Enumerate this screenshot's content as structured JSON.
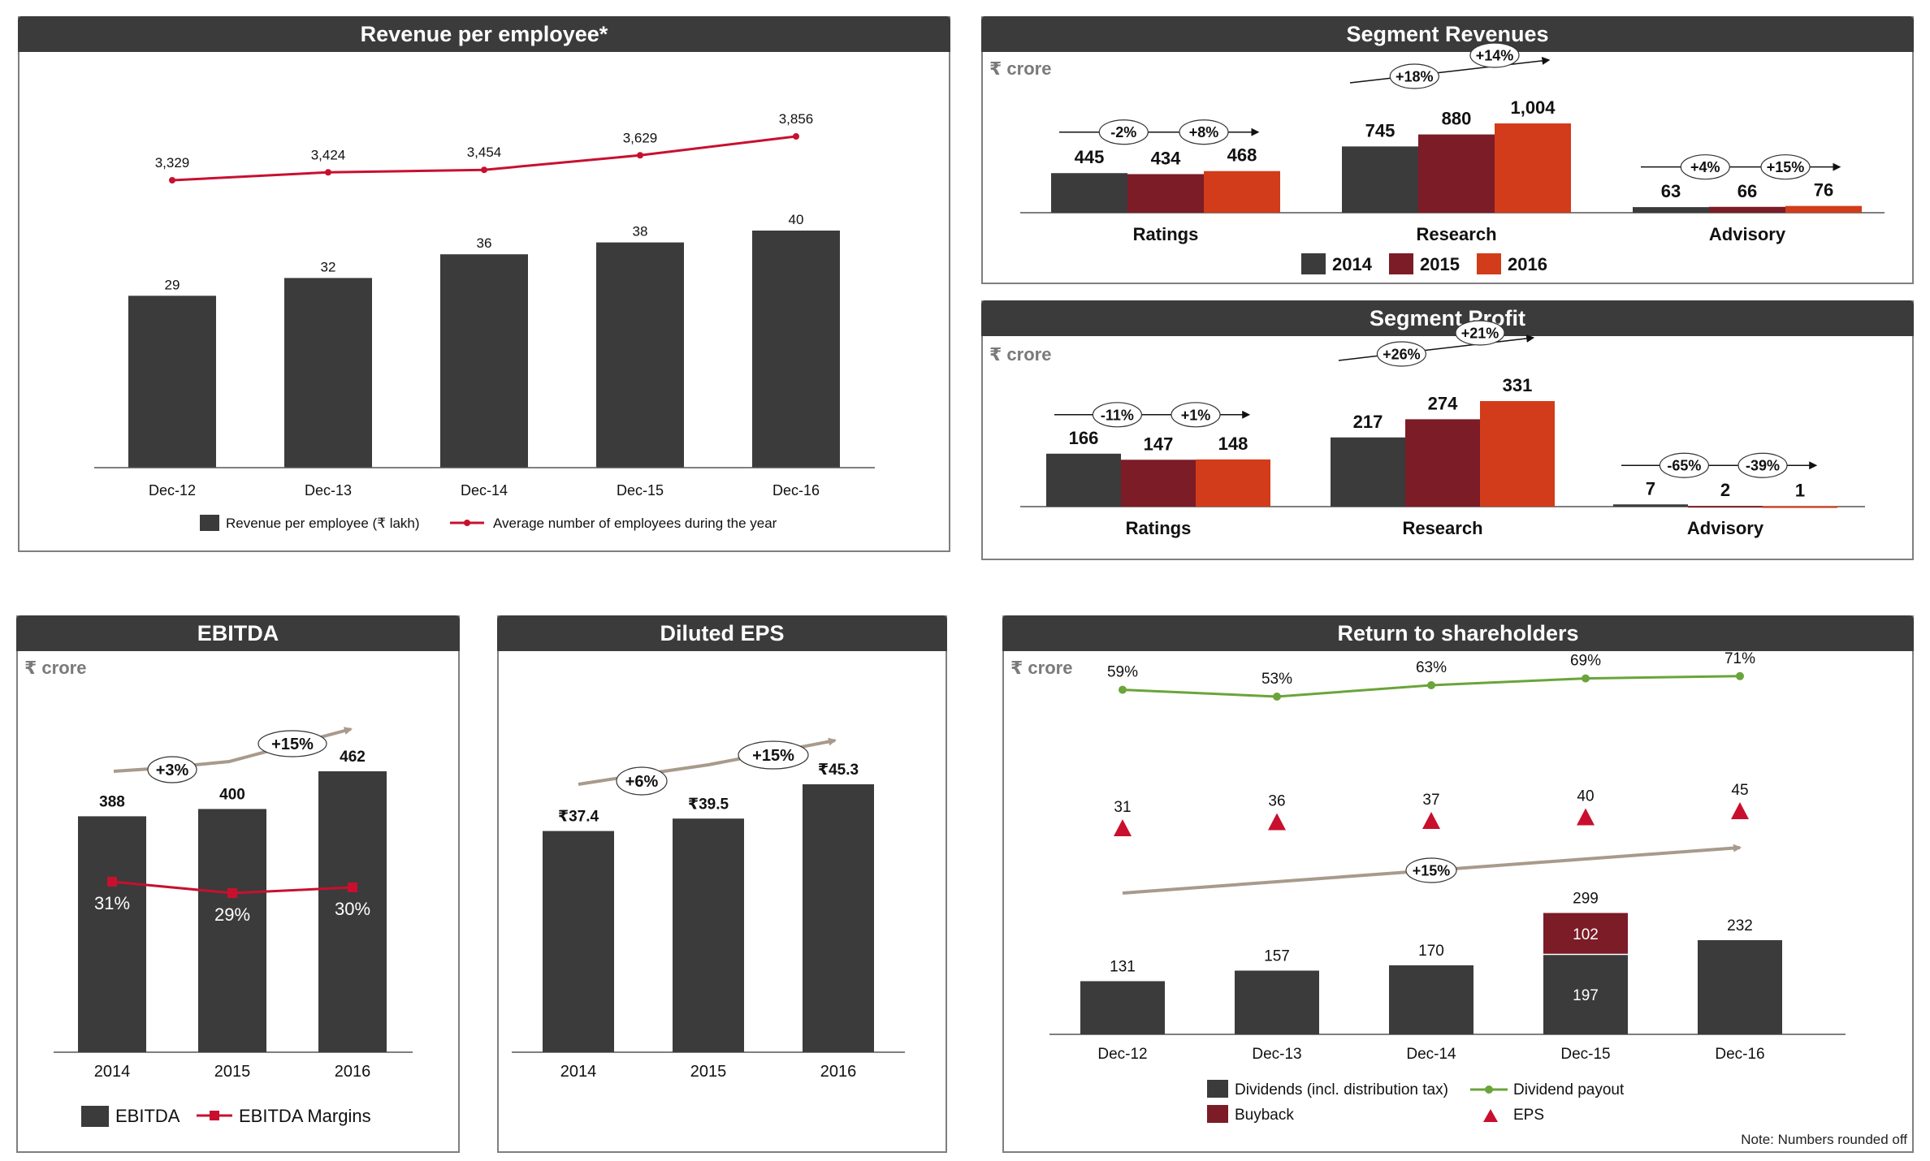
{
  "colors": {
    "dark": "#3b3b3b",
    "maroon": "#7b1c27",
    "orange": "#d23c1a",
    "red": "#c8102e",
    "green": "#6aa43a",
    "tan": "#a89a8c"
  },
  "panels": {
    "rev_emp": {
      "title": "Revenue per employee*"
    },
    "seg_rev": {
      "title": "Segment Revenues",
      "unit": "₹ crore"
    },
    "seg_profit": {
      "title": "Segment Profit",
      "unit": "₹ crore"
    },
    "ebitda": {
      "title": "EBITDA",
      "unit": "₹ crore"
    },
    "eps": {
      "title": "Diluted EPS"
    },
    "return": {
      "title": "Return to shareholders",
      "unit": "₹ crore",
      "note": "Note: Numbers rounded off"
    }
  },
  "chart_data": [
    {
      "id": "rev_emp",
      "type": "bar",
      "categories": [
        "Dec-12",
        "Dec-13",
        "Dec-14",
        "Dec-15",
        "Dec-16"
      ],
      "series": [
        {
          "name": "Revenue per employee (₹ lakh)",
          "values": [
            29,
            32,
            36,
            38,
            40
          ],
          "labels": [
            "29",
            "32",
            "36",
            "38",
            "40"
          ]
        },
        {
          "name": "Average number of employees during the year",
          "type": "line",
          "values": [
            3329,
            3424,
            3454,
            3629,
            3856
          ],
          "labels": [
            "3,329",
            "3,424",
            "3,454",
            "3,629",
            "3,856"
          ]
        }
      ],
      "legend": "bottom"
    },
    {
      "id": "seg_rev",
      "type": "bar",
      "categories": [
        "Ratings",
        "Research",
        "Advisory"
      ],
      "series": [
        {
          "name": "2014",
          "values": [
            445,
            745,
            63
          ],
          "labels": [
            "445",
            "745",
            "63"
          ]
        },
        {
          "name": "2015",
          "values": [
            434,
            880,
            66
          ],
          "labels": [
            "434",
            "880",
            "66"
          ]
        },
        {
          "name": "2016",
          "values": [
            468,
            1004,
            76
          ],
          "labels": [
            "468",
            "1,004",
            "76"
          ]
        }
      ],
      "growth": [
        [
          "-2%",
          "+8%"
        ],
        [
          "+18%",
          "+14%"
        ],
        [
          "+4%",
          "+15%"
        ]
      ],
      "legend": "bottom"
    },
    {
      "id": "seg_profit",
      "type": "bar",
      "categories": [
        "Ratings",
        "Research",
        "Advisory"
      ],
      "series": [
        {
          "name": "2014",
          "values": [
            166,
            217,
            7
          ],
          "labels": [
            "166",
            "217",
            "7"
          ]
        },
        {
          "name": "2015",
          "values": [
            147,
            274,
            2
          ],
          "labels": [
            "147",
            "274",
            "2"
          ]
        },
        {
          "name": "2016",
          "values": [
            148,
            331,
            1
          ],
          "labels": [
            "148",
            "331",
            "1"
          ]
        }
      ],
      "growth": [
        [
          "-11%",
          "+1%"
        ],
        [
          "+26%",
          "+21%"
        ],
        [
          "-65%",
          "-39%"
        ]
      ]
    },
    {
      "id": "ebitda",
      "type": "bar",
      "categories": [
        "2014",
        "2015",
        "2016"
      ],
      "series": [
        {
          "name": "EBITDA",
          "values": [
            388,
            400,
            462
          ],
          "labels": [
            "388",
            "400",
            "462"
          ]
        },
        {
          "name": "EBITDA Margins",
          "type": "line",
          "values": [
            31,
            29,
            30
          ],
          "labels": [
            "31%",
            "29%",
            "30%"
          ]
        }
      ],
      "growth": [
        "+3%",
        "+15%"
      ],
      "legend": "bottom"
    },
    {
      "id": "eps",
      "type": "bar",
      "categories": [
        "2014",
        "2015",
        "2016"
      ],
      "series": [
        {
          "values": [
            37.4,
            39.5,
            45.3
          ],
          "labels": [
            "₹37.4",
            "₹39.5",
            "₹45.3"
          ]
        }
      ],
      "growth": [
        "+6%",
        "+15%"
      ]
    },
    {
      "id": "return",
      "type": "bar",
      "categories": [
        "Dec-12",
        "Dec-13",
        "Dec-14",
        "Dec-15",
        "Dec-16"
      ],
      "series": [
        {
          "name": "Dividends (incl. distribution tax)",
          "values": [
            131,
            157,
            170,
            197,
            232
          ],
          "labels": [
            "131",
            "157",
            "170",
            "197",
            "232"
          ]
        },
        {
          "name": "Buyback",
          "values": [
            0,
            0,
            0,
            102,
            0
          ],
          "labels": [
            "",
            "",
            "",
            "102",
            ""
          ]
        },
        {
          "name": "Dividend payout",
          "type": "line",
          "values": [
            59,
            53,
            63,
            69,
            71
          ],
          "labels": [
            "59%",
            "53%",
            "63%",
            "69%",
            "71%"
          ]
        },
        {
          "name": "EPS",
          "type": "scatter",
          "values": [
            31,
            36,
            37,
            40,
            45
          ],
          "labels": [
            "31",
            "36",
            "37",
            "40",
            "45"
          ]
        }
      ],
      "totals": [
        {
          "index": 3,
          "label": "299"
        }
      ],
      "growth": "+15%",
      "legend": "bottom"
    }
  ]
}
